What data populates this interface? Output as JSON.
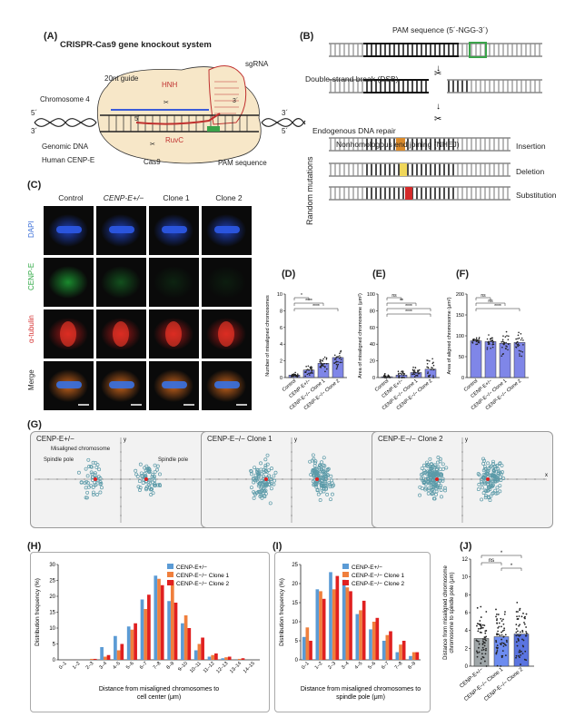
{
  "panels": {
    "A": {
      "letter": "(A)",
      "title": "CRISPR-Cas9 gene knockout system",
      "labels": {
        "guide": "20nt guide",
        "hnh": "HNH",
        "sgrna": "sgRNA",
        "chromosome": "Chromosome 4",
        "five_left": "5´",
        "three_left": "3´",
        "five_inner": "5´",
        "three_inner": "3´",
        "five_right_top": "3´",
        "five_right_bot": "5´",
        "genomic": "Genomic DNA",
        "human": "Human CENP-E",
        "ruvc": "RuvC",
        "cas9": "Cas9",
        "pam": "PAM sequence"
      }
    },
    "B": {
      "letter": "(B)",
      "pam_label": "PAM sequence (5´-NGG-3´)",
      "dsb": "Double-strand break (DSB)",
      "repair": "Endogenous DNA repair",
      "nhej": "Nonhomologous end joining (NHEJ)",
      "random": "Random mutations",
      "outcomes": [
        "Insertion",
        "Deletion",
        "Substitution"
      ],
      "colors": {
        "pam": "#3aa34a",
        "insertion": "#d98a2b",
        "deletion": "#f0d75a",
        "substitution": "#d42a2a"
      }
    },
    "C": {
      "letter": "(C)",
      "columns": [
        "Control",
        "CENP-E+/−",
        "Clone 1",
        "Clone 2"
      ],
      "rows": [
        "DAPI",
        "CENP-E",
        "α-tubulin",
        "Merge"
      ],
      "row_colors": [
        "#3b6fd8",
        "#2fa844",
        "#d42a2a",
        "#222222"
      ]
    },
    "D": {
      "letter": "(D)",
      "chart_data": {
        "type": "bar",
        "ylabel": "Number of misaligned chromosomes",
        "categories": [
          "Control",
          "CENP-E+/−",
          "CENP-E−/− Clone 1",
          "CENP-E−/− Clone 2"
        ],
        "values": [
          0.3,
          0.9,
          1.7,
          2.4
        ],
        "ylim": [
          0,
          10
        ],
        "yticks": [
          "0",
          "2",
          "4",
          "6",
          "8",
          "10"
        ],
        "sig": [
          "*",
          "****",
          "****"
        ]
      }
    },
    "E": {
      "letter": "(E)",
      "chart_data": {
        "type": "bar",
        "ylabel": "Area of misaligned chromosome (μm²)",
        "categories": [
          "Control",
          "CENP-E+/−",
          "CENP-E−/− Clone 1",
          "CENP-E−/− Clone 2"
        ],
        "values": [
          1,
          3,
          6,
          10
        ],
        "ylim": [
          0,
          100
        ],
        "yticks": [
          "0",
          "20",
          "40",
          "60",
          "80",
          "100"
        ],
        "sig": [
          "ns",
          "**",
          "****",
          "****"
        ]
      }
    },
    "F": {
      "letter": "(F)",
      "chart_data": {
        "type": "bar",
        "ylabel": "Area of aligned chromosome (μm²)",
        "categories": [
          "Control",
          "CENP-E+/−",
          "CENP-E−/− Clone 1",
          "CENP-E−/− Clone 2"
        ],
        "values": [
          88,
          86,
          82,
          84
        ],
        "ylim": [
          0,
          200
        ],
        "yticks": [
          "0",
          "50",
          "100",
          "150",
          "200"
        ],
        "sig": [
          "ns",
          "ns",
          "****"
        ]
      }
    },
    "G": {
      "letter": "(G)",
      "plots": [
        {
          "title": "CENP-E+/−",
          "callouts": [
            "Misaligned chromosome",
            "Spindle pole",
            "Spindle pole"
          ]
        },
        {
          "title": "CENP-E−/− Clone 1",
          "callouts": []
        },
        {
          "title": "CENP-E−/− Clone 2",
          "callouts": []
        }
      ],
      "axis_x": "x",
      "axis_y": "y",
      "point_color": "#5b9aa8"
    },
    "H": {
      "letter": "(H)",
      "chart_data": {
        "type": "bar",
        "xlabel": "Distance from misaligned chromosomes to cell center (μm)",
        "ylabel": "Distribution frequency (%)",
        "categories": [
          "0–1",
          "1–2",
          "2–3",
          "3–4",
          "4–5",
          "5–6",
          "6–7",
          "7–8",
          "8–9",
          "9–10",
          "10–11",
          "11–12",
          "12–13",
          "13–14",
          "14–15"
        ],
        "ylim": [
          0,
          30
        ],
        "yticks": [
          "0",
          "5",
          "10",
          "15",
          "20",
          "25",
          "30"
        ],
        "series": [
          {
            "name": "CENP-E+/−",
            "color": "#5b9bd5",
            "values": [
              0,
              0,
              0,
              4,
              7.5,
              10.5,
              19,
              26.5,
              18.5,
              11.5,
              3,
              1,
              0.5,
              0,
              0
            ]
          },
          {
            "name": "CENP-E−/− Clone 1",
            "color": "#f07f3c",
            "values": [
              0,
              0,
              0.3,
              1,
              3,
              9.5,
              16,
              25.5,
              25,
              14,
              5,
              1.5,
              0.8,
              0.3,
              0
            ]
          },
          {
            "name": "CENP-E−/− Clone 2",
            "color": "#e02020",
            "values": [
              0,
              0,
              0.3,
              1.5,
              5,
              11.5,
              20.5,
              23.5,
              18,
              10,
              7,
              2,
              1,
              0.5,
              0
            ]
          }
        ]
      }
    },
    "I": {
      "letter": "(I)",
      "chart_data": {
        "type": "bar",
        "xlabel": "Distance from misaligned chromosomes to spindle pole (μm)",
        "ylabel": "Distribution frequency (%)",
        "categories": [
          "0–1",
          "1–2",
          "2–3",
          "3–4",
          "4–5",
          "5–6",
          "6–7",
          "7–8",
          "8–9"
        ],
        "ylim": [
          0,
          25
        ],
        "yticks": [
          "0",
          "5",
          "10",
          "15",
          "20",
          "25"
        ],
        "series": [
          {
            "name": "CENP-E+/−",
            "color": "#5b9bd5",
            "values": [
              6,
              18.5,
              23,
              21,
              12,
              8,
              5,
              2,
              1
            ]
          },
          {
            "name": "CENP-E−/− Clone 1",
            "color": "#f07f3c",
            "values": [
              8.5,
              18,
              18.5,
              19,
              13,
              10,
              6.5,
              4,
              2
            ]
          },
          {
            "name": "CENP-E−/− Clone 2",
            "color": "#e02020",
            "values": [
              5,
              16,
              22,
              18,
              15.5,
              11,
              7.5,
              5,
              2
            ]
          }
        ]
      }
    },
    "J": {
      "letter": "(J)",
      "chart_data": {
        "type": "bar",
        "ylabel": "Distance from misaligned chromosome to spindle pole (μm)",
        "categories": [
          "CENP-E+/−",
          "CENP-E−/− Clone 1",
          "CENP-E−/− Clone 2"
        ],
        "values": [
          3.1,
          3.3,
          3.6
        ],
        "ylim": [
          0,
          12
        ],
        "yticks": [
          "0",
          "2",
          "4",
          "6",
          "8",
          "10",
          "12"
        ],
        "sig": [
          "ns",
          "*",
          "*"
        ]
      }
    }
  }
}
